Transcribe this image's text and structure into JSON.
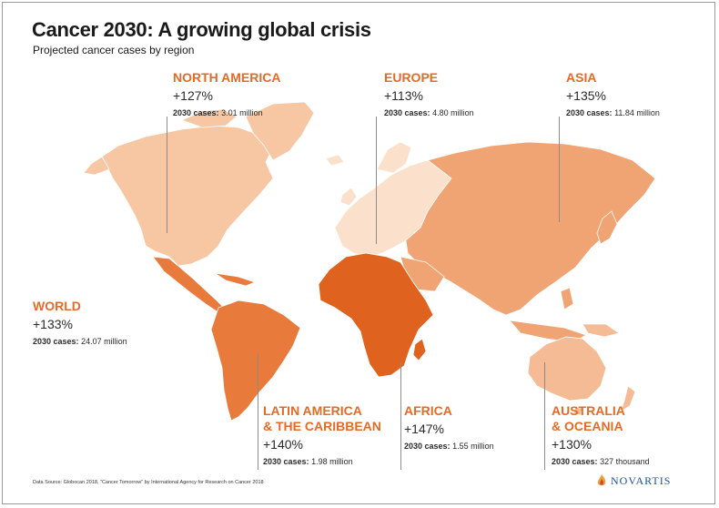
{
  "title": "Cancer 2030: A growing global crisis",
  "subtitle": "Projected cancer cases by region",
  "cases_label": "2030 cases:",
  "regions": [
    {
      "id": "north_america",
      "name": "NORTH AMERICA",
      "growth": "+127%",
      "cases": "3.01 million",
      "color": "#f7c7a4"
    },
    {
      "id": "europe",
      "name": "EUROPE",
      "growth": "+113%",
      "cases": "4.80 million",
      "color": "#fbe0cc"
    },
    {
      "id": "asia",
      "name": "ASIA",
      "growth": "+135%",
      "cases": "11.84 million",
      "color": "#f0a474"
    },
    {
      "id": "world",
      "name": "WORLD",
      "growth": "+133%",
      "cases": "24.07 million",
      "color": "#e36b26"
    },
    {
      "id": "latin_america",
      "name": "LATIN AMERICA\n& THE CARIBBEAN",
      "growth": "+140%",
      "cases": "1.98 million",
      "color": "#e87b3c"
    },
    {
      "id": "africa",
      "name": "AFRICA",
      "growth": "+147%",
      "cases": "1.55 million",
      "color": "#e0621f"
    },
    {
      "id": "oceania",
      "name": "AUSTRALIA\n& OCEANIA",
      "growth": "+130%",
      "cases": "327 thousand",
      "color": "#f4bb95"
    }
  ],
  "source": "Data Source: Globocan 2018, \"Cancer Tomorrow\" by International Agency for Research on Cancer 2018",
  "logo": {
    "text": "NOVARTIS",
    "color": "#1b4f9c",
    "mark_color": "#e8a33a"
  }
}
